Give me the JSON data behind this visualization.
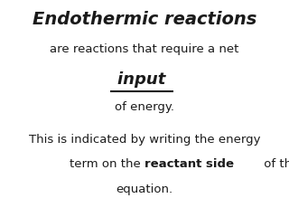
{
  "background_color": "#ffffff",
  "title_text": "Endothermic reactions",
  "title_color": "#1a1a1a",
  "title_fontsize": 14,
  "line2_text": "are reactions that require a net",
  "line2_color": "#1a1a1a",
  "line2_fontsize": 9.5,
  "input_text": "input ",
  "input_color": "#1a1a1a",
  "input_fontsize": 13,
  "line4_text": "of energy.",
  "line4_color": "#1a1a1a",
  "line4_fontsize": 9.5,
  "line5_text": "This is indicated by writing the energy",
  "line5_color": "#1a1a1a",
  "line5_fontsize": 9.5,
  "line6_part1": "term on the ",
  "line6_bold": "reactant side",
  "line6_part2": " of the",
  "line6_color": "#1a1a1a",
  "line6_fontsize": 9.5,
  "line7_text": "equation.",
  "line7_color": "#1a1a1a",
  "line7_fontsize": 9.5
}
